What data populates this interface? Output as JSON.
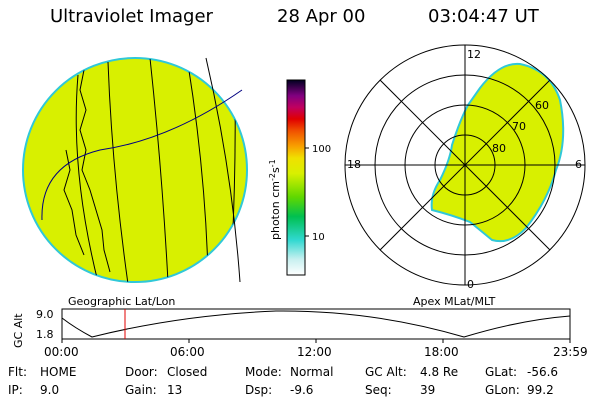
{
  "header": {
    "instrument": "Ultraviolet Imager",
    "date": "28 Apr 00",
    "time": "03:04:47 UT"
  },
  "colors": {
    "emission_fill": "#d8f000",
    "emission_edge": "#30c8d8",
    "grid_line": "#000000",
    "track_line": "#000080",
    "marker_line": "#e00000"
  },
  "left_panel": {
    "label": "Geographic Lat/Lon"
  },
  "right_panel": {
    "label": "Apex MLat/MLT",
    "mlt_labels": [
      "12",
      "18",
      "6",
      "0"
    ],
    "mlat_labels": [
      "60",
      "70",
      "80"
    ]
  },
  "colorbar": {
    "unit_label": "photon cm",
    "unit_exp1": "-2",
    "unit_mid": "s",
    "unit_exp2": "-1",
    "ticks": [
      "100",
      "10"
    ]
  },
  "altitude_plot": {
    "ylabel": "GC Alt",
    "yticks": [
      "9.0",
      "1.8"
    ],
    "xticks": [
      "00:00",
      "06:00",
      "12:00",
      "18:00",
      "23:59"
    ]
  },
  "status": {
    "flt_label": "Flt:",
    "flt_value": "HOME",
    "ip_label": "IP:",
    "ip_value": "9.0",
    "door_label": "Door:",
    "door_value": "Closed",
    "gain_label": "Gain:",
    "gain_value": "13",
    "mode_label": "Mode:",
    "mode_value": "Normal",
    "dsp_label": "Dsp:",
    "dsp_value": "-9.6",
    "gcalt_label": "GC Alt:",
    "gcalt_value": "4.8 Re",
    "seq_label": "Seq:",
    "seq_value": "39",
    "glat_label": "GLat:",
    "glat_value": "-56.6",
    "glon_label": "GLon:",
    "glon_value": "99.2"
  }
}
